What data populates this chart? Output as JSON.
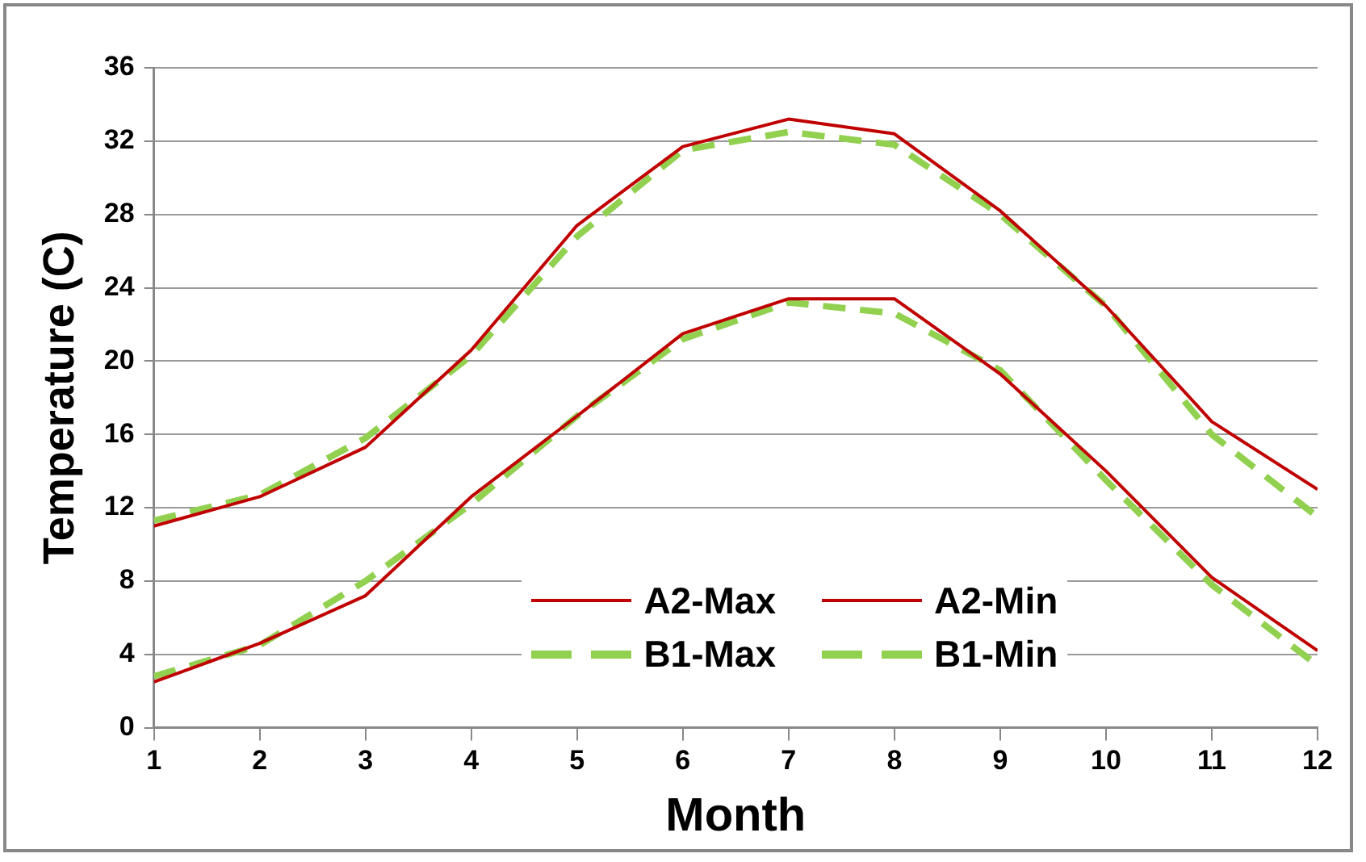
{
  "chart_data": {
    "type": "line",
    "xlabel": "Month",
    "ylabel": "Temperature (C)",
    "x": [
      1,
      2,
      3,
      4,
      5,
      6,
      7,
      8,
      9,
      10,
      11,
      12
    ],
    "xlim": [
      1,
      12
    ],
    "xticks": [
      1,
      2,
      3,
      4,
      5,
      6,
      7,
      8,
      9,
      10,
      11,
      12
    ],
    "ylim": [
      0,
      36
    ],
    "yticks": [
      0,
      4,
      8,
      12,
      16,
      20,
      24,
      28,
      32,
      36
    ],
    "grid": "y",
    "legend": "bottom",
    "marker": "none",
    "series": [
      {
        "name": "A2-Max",
        "color": "#c00000",
        "line_style": "solid",
        "values": [
          11.0,
          12.6,
          15.3,
          20.6,
          27.4,
          31.7,
          33.2,
          32.4,
          28.2,
          23.0,
          16.7,
          13.0
        ]
      },
      {
        "name": "A2-Min",
        "color": "#c00000",
        "line_style": "solid",
        "values": [
          2.5,
          4.6,
          7.2,
          12.6,
          17.0,
          21.5,
          23.4,
          23.4,
          19.3,
          14.0,
          8.2,
          4.2
        ]
      },
      {
        "name": "B1-Max",
        "color": "#92d050",
        "line_style": "dashed",
        "values": [
          11.3,
          12.7,
          15.8,
          20.3,
          26.8,
          31.5,
          32.5,
          31.8,
          28.0,
          23.0,
          16.0,
          11.5
        ]
      },
      {
        "name": "B1-Min",
        "color": "#92d050",
        "line_style": "dashed",
        "values": [
          2.8,
          4.5,
          8.0,
          12.2,
          17.0,
          21.2,
          23.2,
          22.6,
          19.5,
          13.5,
          7.8,
          3.4
        ]
      }
    ]
  }
}
